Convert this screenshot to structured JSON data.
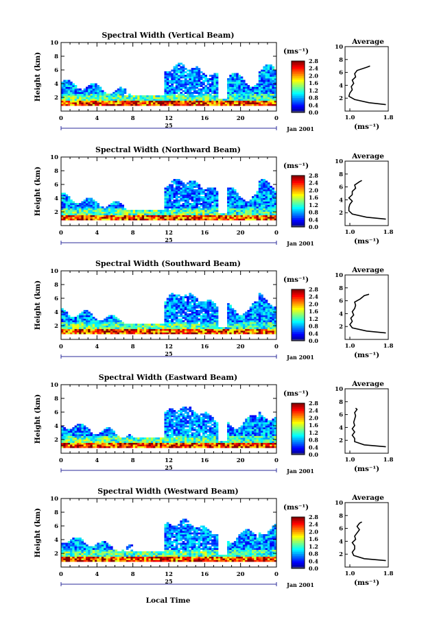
{
  "figure": {
    "xlabel": "Local Time",
    "date_label": "Jan 2001",
    "day_label": "25",
    "ylabel": "Height (km)",
    "cbar_units": "(ms⁻¹)",
    "avg_title": "Average",
    "avg_xlabel": "(ms⁻¹)"
  },
  "chart_data": [
    {
      "type": "heatmap",
      "title": "Spectral Width (Vertical Beam)",
      "ylabel": "Height (km)",
      "x_ticks": [
        "0",
        "4",
        "8",
        "12",
        "16",
        "20",
        "0"
      ],
      "xlim": [
        0,
        24
      ],
      "ylim": [
        0,
        10
      ],
      "y_ticks": [
        "2",
        "4",
        "6",
        "8",
        "10"
      ],
      "colorbar": {
        "units": "(ms⁻¹)",
        "ticks": [
          "0.0",
          "0.4",
          "0.8",
          "1.2",
          "1.6",
          "2.0",
          "2.4",
          "2.8"
        ],
        "range": [
          0,
          2.8
        ]
      },
      "average_profile": {
        "title": "Average",
        "xlabel": "(ms⁻¹)",
        "x_ticks": [
          "1.0",
          "1.8"
        ],
        "height": [
          1.0,
          1.3,
          1.8,
          2.3,
          2.8,
          3.3,
          3.8,
          4.3,
          4.8,
          5.3,
          5.8,
          6.3,
          6.8,
          7.0
        ],
        "width": [
          1.75,
          1.4,
          1.1,
          0.98,
          1.0,
          1.05,
          1.03,
          1.08,
          1.05,
          1.12,
          1.1,
          1.15,
          1.35,
          1.42
        ]
      }
    },
    {
      "type": "heatmap",
      "title": "Spectral Width (Northward Beam)",
      "ylabel": "Height (km)",
      "x_ticks": [
        "0",
        "4",
        "8",
        "12",
        "16",
        "20",
        "0"
      ],
      "xlim": [
        0,
        24
      ],
      "ylim": [
        0,
        10
      ],
      "y_ticks": [
        "2",
        "4",
        "6",
        "8",
        "10"
      ],
      "colorbar": {
        "units": "(ms⁻¹)",
        "ticks": [
          "0.0",
          "0.4",
          "0.8",
          "1.2",
          "1.6",
          "2.0",
          "2.4",
          "2.8"
        ],
        "range": [
          0,
          2.8
        ]
      },
      "average_profile": {
        "title": "Average",
        "xlabel": "(ms⁻¹)",
        "x_ticks": [
          "1.0",
          "1.8"
        ],
        "height": [
          1.0,
          1.3,
          1.8,
          2.3,
          2.8,
          3.3,
          3.8,
          4.3,
          4.8,
          5.3,
          5.8,
          6.3,
          6.8,
          7.0
        ],
        "width": [
          1.75,
          1.35,
          1.05,
          0.98,
          0.98,
          1.0,
          1.05,
          0.98,
          1.05,
          1.05,
          1.12,
          1.1,
          1.2,
          1.25
        ]
      }
    },
    {
      "type": "heatmap",
      "title": "Spectral Width (Southward Beam)",
      "ylabel": "Height (km)",
      "x_ticks": [
        "0",
        "4",
        "8",
        "12",
        "16",
        "20",
        "0"
      ],
      "xlim": [
        0,
        24
      ],
      "ylim": [
        0,
        10
      ],
      "y_ticks": [
        "2",
        "4",
        "6",
        "8",
        "10"
      ],
      "colorbar": {
        "units": "(ms⁻¹)",
        "ticks": [
          "0.0",
          "0.4",
          "0.8",
          "1.2",
          "1.6",
          "2.0",
          "2.4",
          "2.8"
        ],
        "range": [
          0,
          2.8
        ]
      },
      "average_profile": {
        "title": "Average",
        "xlabel": "(ms⁻¹)",
        "x_ticks": [
          "1.0",
          "1.8"
        ],
        "height": [
          1.0,
          1.3,
          1.8,
          2.3,
          2.8,
          3.3,
          3.8,
          4.3,
          4.8,
          5.3,
          5.8,
          6.3,
          6.8,
          7.0
        ],
        "width": [
          1.75,
          1.35,
          1.05,
          1.0,
          1.05,
          1.02,
          1.08,
          1.05,
          1.1,
          1.12,
          1.1,
          1.22,
          1.3,
          1.4
        ]
      }
    },
    {
      "type": "heatmap",
      "title": "Spectral Width (Eastward Beam)",
      "ylabel": "Height (km)",
      "x_ticks": [
        "0",
        "4",
        "8",
        "12",
        "16",
        "20",
        "0"
      ],
      "xlim": [
        0,
        24
      ],
      "ylim": [
        0,
        10
      ],
      "y_ticks": [
        "2",
        "4",
        "6",
        "8",
        "10"
      ],
      "colorbar": {
        "units": "(ms⁻¹)",
        "ticks": [
          "0.0",
          "0.4",
          "0.8",
          "1.2",
          "1.6",
          "2.0",
          "2.4",
          "2.8"
        ],
        "range": [
          0,
          2.8
        ]
      },
      "average_profile": {
        "title": "Average",
        "xlabel": "(ms⁻¹)",
        "x_ticks": [
          "1.0",
          "1.8"
        ],
        "height": [
          1.0,
          1.3,
          1.8,
          2.3,
          2.8,
          3.3,
          3.8,
          4.3,
          4.8,
          5.3,
          5.8,
          6.3,
          6.8,
          7.0
        ],
        "width": [
          1.75,
          1.3,
          1.1,
          1.1,
          1.05,
          1.1,
          1.05,
          1.1,
          1.08,
          1.1,
          1.12,
          1.1,
          1.15,
          1.12
        ]
      }
    },
    {
      "type": "heatmap",
      "title": "Spectral Width (Westward Beam)",
      "ylabel": "Height (km)",
      "x_ticks": [
        "0",
        "4",
        "8",
        "12",
        "16",
        "20",
        "0"
      ],
      "xlim": [
        0,
        24
      ],
      "ylim": [
        0,
        10
      ],
      "y_ticks": [
        "2",
        "4",
        "6",
        "8",
        "10"
      ],
      "colorbar": {
        "units": "(ms⁻¹)",
        "ticks": [
          "0.0",
          "0.4",
          "0.8",
          "1.2",
          "1.6",
          "2.0",
          "2.4",
          "2.8"
        ],
        "range": [
          0,
          2.8
        ]
      },
      "average_profile": {
        "title": "Average",
        "xlabel": "(ms⁻¹)",
        "x_ticks": [
          "1.0",
          "1.8"
        ],
        "height": [
          1.0,
          1.3,
          1.8,
          2.3,
          2.8,
          3.3,
          3.8,
          4.3,
          4.8,
          5.3,
          5.8,
          6.3,
          6.8,
          7.0
        ],
        "width": [
          1.75,
          1.3,
          1.08,
          1.05,
          1.1,
          1.1,
          1.05,
          1.12,
          1.1,
          1.15,
          1.2,
          1.15,
          1.2,
          1.25
        ]
      }
    }
  ]
}
